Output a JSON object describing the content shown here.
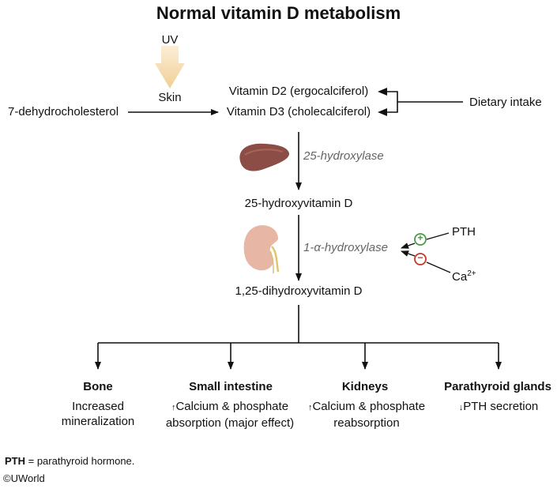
{
  "title": "Normal vitamin D metabolism",
  "uv_label": "UV",
  "skin_label": "Skin",
  "precursor": "7-dehydrocholesterol",
  "vitamin_d2": "Vitamin D2 (ergocalciferol)",
  "vitamin_d3": "Vitamin D3 (cholecalciferol)",
  "dietary_intake": "Dietary intake",
  "enzyme_liver": "25-hydroxylase",
  "intermediate": "25-hydroxyvitamin D",
  "enzyme_kidney": "1-α-hydroxylase",
  "regulators": {
    "pth": "PTH",
    "pth_sign": "+",
    "ca_base": "Ca",
    "ca_charge": "2+",
    "ca_sign": "−"
  },
  "active_form": "1,25-dihydroxyvitamin D",
  "targets": [
    {
      "name": "Bone",
      "effect": "Increased mineralization"
    },
    {
      "name": "Small intestine",
      "arrow": "↑",
      "effect": "Calcium & phosphate absorption (major effect)"
    },
    {
      "name": "Kidneys",
      "arrow": "↑",
      "effect": "Calcium & phosphate reabsorption"
    },
    {
      "name": "Parathyroid glands",
      "arrow": "↓",
      "effect": "PTH secretion"
    }
  ],
  "footnote_abbr": "PTH",
  "footnote_text": " = parathyroid hormone.",
  "copyright_symbol": "©",
  "copyright_text": "UWorld",
  "colors": {
    "uv_arrow": "#f3d9a8",
    "stimulate": "#4a9a4a",
    "inhibit": "#c0392b",
    "liver": "#8b4d45",
    "kidney": "#e7b6a4",
    "enzyme_text": "#666666"
  }
}
